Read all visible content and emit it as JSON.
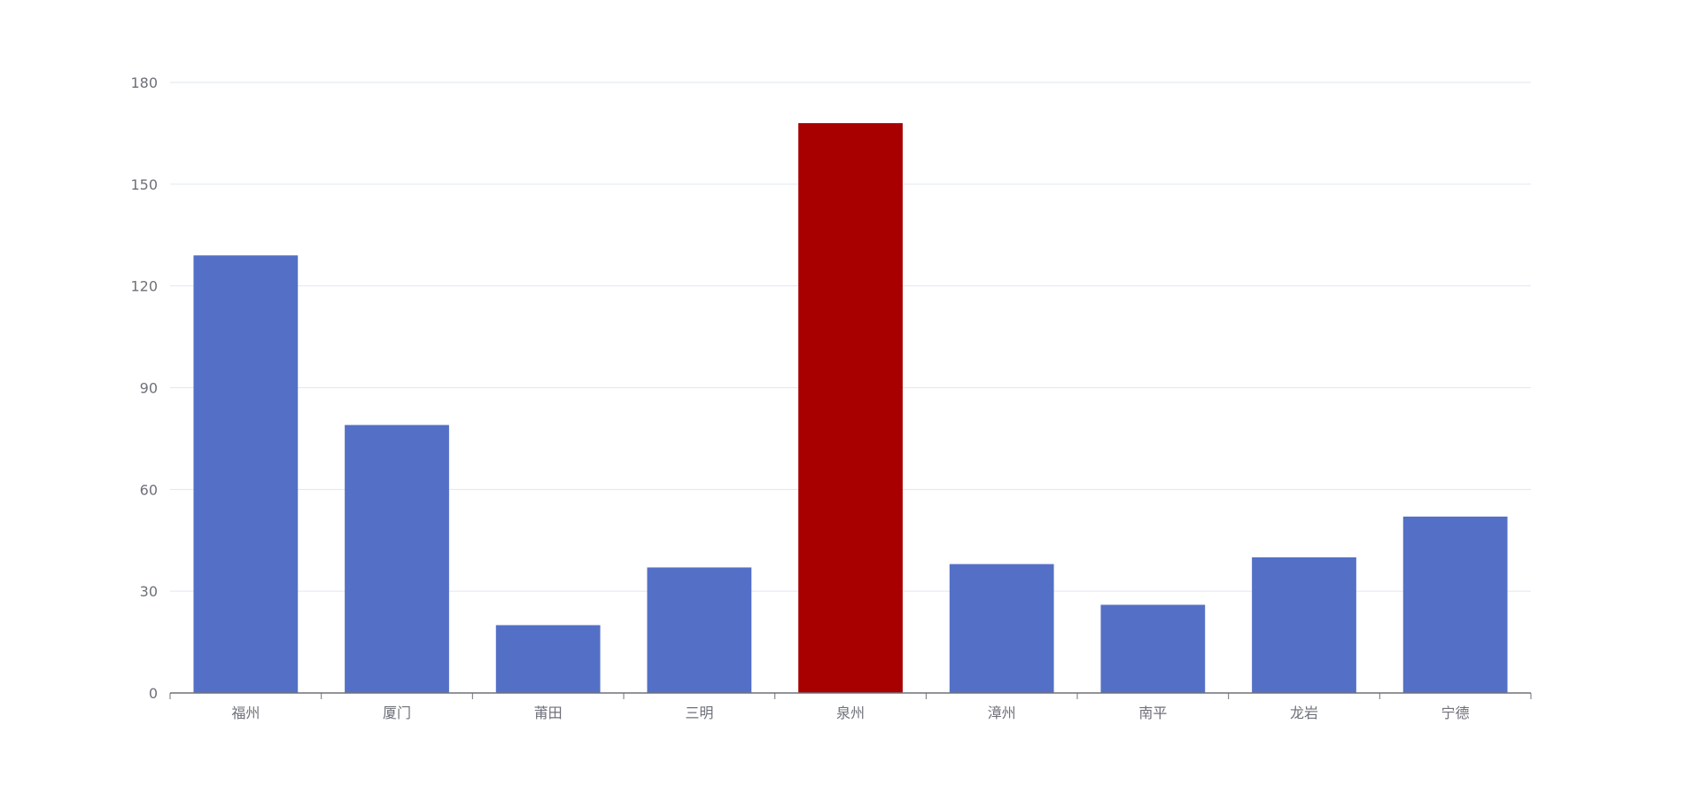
{
  "chart_data": {
    "type": "bar",
    "categories": [
      "福州",
      "厦门",
      "莆田",
      "三明",
      "泉州",
      "漳州",
      "南平",
      "龙岩",
      "宁德"
    ],
    "values": [
      129,
      79,
      20,
      37,
      168,
      38,
      26,
      40,
      52
    ],
    "ylim": [
      0,
      180
    ],
    "yticks": [
      0,
      30,
      60,
      90,
      120,
      150,
      180
    ],
    "grid": true,
    "colors": {
      "default": "#5470c6",
      "highlight": "#a80000",
      "grid": "#e0e6f1",
      "axis": "#6e7079"
    },
    "highlight_index": 4
  }
}
